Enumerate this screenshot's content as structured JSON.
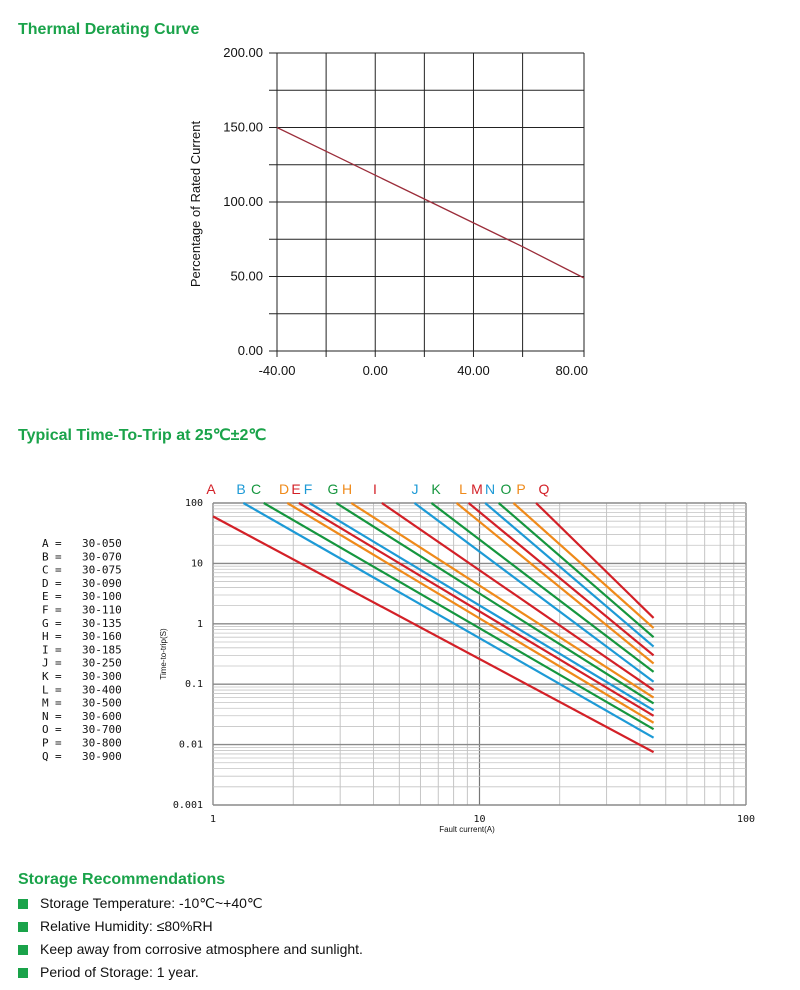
{
  "sections": {
    "thermal_title": "Thermal Derating Curve",
    "trip_title": "Typical Time-To-Trip at 25℃±2℃",
    "storage_title": "Storage Recommendations"
  },
  "colors": {
    "heading": "#1aa34a",
    "derating_line": "#9b2d3a",
    "red": "#d32027",
    "blue": "#1d9ad6",
    "green": "#15963e",
    "orange": "#ef8a1a"
  },
  "chart_data": [
    {
      "type": "line",
      "title": "",
      "xlabel": "",
      "ylabel": "Percentage of Rated Current",
      "xlim": [
        -40,
        85
      ],
      "ylim": [
        0,
        200
      ],
      "x_ticks": [
        -40,
        -20,
        0,
        20,
        40,
        60,
        80
      ],
      "x_tick_labels": [
        "-40.00",
        "",
        "0.00",
        "",
        "40.00",
        "",
        "80.00"
      ],
      "y_ticks": [
        0,
        25,
        50,
        75,
        100,
        125,
        150,
        175,
        200
      ],
      "y_tick_labels": [
        "0.00",
        "",
        "50.00",
        "",
        "100.00",
        "",
        "150.00",
        "",
        "200.00"
      ],
      "grid": true,
      "series": [
        {
          "x": [
            -40,
            -20,
            0,
            20,
            40,
            60,
            85
          ],
          "y": [
            150,
            134,
            118,
            102,
            86,
            70,
            49
          ]
        }
      ]
    },
    {
      "type": "line",
      "title": "",
      "xlabel": "Fault current(A)",
      "ylabel": "Time-to-trip(S)",
      "x_scale": "log",
      "y_scale": "log",
      "xlim": [
        1,
        100
      ],
      "ylim": [
        0.001,
        100
      ],
      "x_tick_labels": [
        "1",
        "10",
        "100"
      ],
      "y_tick_labels": [
        "100",
        "10",
        "1",
        "0.1",
        "0.01",
        "0.001"
      ],
      "grid": true,
      "legend_position": "left",
      "series": [
        {
          "name": "A",
          "rating": "30-050",
          "color": "red",
          "x": [
            1,
            45
          ],
          "y": [
            60,
            0.0075
          ]
        },
        {
          "name": "B",
          "rating": "30-070",
          "color": "blue",
          "x": [
            1.3,
            45
          ],
          "y": [
            100,
            0.013
          ]
        },
        {
          "name": "C",
          "rating": "30-075",
          "color": "green",
          "x": [
            1.55,
            45
          ],
          "y": [
            100,
            0.018
          ]
        },
        {
          "name": "D",
          "rating": "30-090",
          "color": "orange",
          "x": [
            1.9,
            45
          ],
          "y": [
            100,
            0.023
          ]
        },
        {
          "name": "E",
          "rating": "30-100",
          "color": "red",
          "x": [
            2.1,
            45
          ],
          "y": [
            100,
            0.03
          ]
        },
        {
          "name": "F",
          "rating": "30-110",
          "color": "blue",
          "x": [
            2.3,
            45
          ],
          "y": [
            100,
            0.037
          ]
        },
        {
          "name": "G",
          "rating": "30-135",
          "color": "green",
          "x": [
            2.9,
            45
          ],
          "y": [
            100,
            0.048
          ]
        },
        {
          "name": "H",
          "rating": "30-160",
          "color": "orange",
          "x": [
            3.3,
            45
          ],
          "y": [
            100,
            0.06
          ]
        },
        {
          "name": "I",
          "rating": "30-185",
          "color": "red",
          "x": [
            4.3,
            45
          ],
          "y": [
            100,
            0.08
          ]
        },
        {
          "name": "J",
          "rating": "30-250",
          "color": "blue",
          "x": [
            5.7,
            45
          ],
          "y": [
            100,
            0.11
          ]
        },
        {
          "name": "K",
          "rating": "30-300",
          "color": "green",
          "x": [
            6.6,
            45
          ],
          "y": [
            100,
            0.16
          ]
        },
        {
          "name": "L",
          "rating": "30-400",
          "color": "orange",
          "x": [
            8.2,
            45
          ],
          "y": [
            100,
            0.22
          ]
        },
        {
          "name": "M",
          "rating": "30-500",
          "color": "red",
          "x": [
            9.1,
            45
          ],
          "y": [
            100,
            0.3
          ]
        },
        {
          "name": "N",
          "rating": "30-600",
          "color": "blue",
          "x": [
            10.5,
            45
          ],
          "y": [
            100,
            0.42
          ]
        },
        {
          "name": "O",
          "rating": "30-700",
          "color": "green",
          "x": [
            11.8,
            45
          ],
          "y": [
            100,
            0.6
          ]
        },
        {
          "name": "P",
          "rating": "30-800",
          "color": "orange",
          "x": [
            13.4,
            45
          ],
          "y": [
            100,
            0.85
          ]
        },
        {
          "name": "Q",
          "rating": "30-900",
          "color": "red",
          "x": [
            16.3,
            45
          ],
          "y": [
            100,
            1.25
          ]
        }
      ]
    }
  ],
  "storage": {
    "items": [
      "Storage Temperature: -10℃~+40℃",
      "Relative Humidity: ≤80%RH",
      "Keep away from corrosive atmosphere and sunlight.",
      "Period of Storage: 1 year."
    ]
  }
}
